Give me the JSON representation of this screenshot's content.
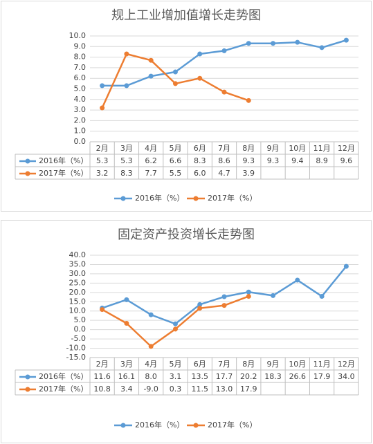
{
  "chart_data": [
    {
      "type": "line",
      "title": "规上工业增加值增长走势图",
      "categories": [
        "2月",
        "3月",
        "4月",
        "5月",
        "6月",
        "7月",
        "8月",
        "9月",
        "10月",
        "11月",
        "12月"
      ],
      "series": [
        {
          "name": "2016年（%）",
          "color": "#5b9bd5",
          "values": [
            5.3,
            5.3,
            6.2,
            6.6,
            8.3,
            8.6,
            9.3,
            9.3,
            9.4,
            8.9,
            9.6
          ],
          "value_labels": [
            "5.3",
            "5.3",
            "6.2",
            "6.6",
            "8.3",
            "8.6",
            "9.3",
            "9.3",
            "9.4",
            "8.9",
            "9.6"
          ]
        },
        {
          "name": "2017年（%）",
          "color": "#ed7d31",
          "values": [
            3.2,
            8.3,
            7.7,
            5.5,
            6.0,
            4.7,
            3.9,
            null,
            null,
            null,
            null
          ],
          "value_labels": [
            "3.2",
            "8.3",
            "7.7",
            "5.5",
            "6.0",
            "4.7",
            "3.9",
            null,
            null,
            null,
            null
          ]
        }
      ],
      "ylim": [
        0,
        10
      ],
      "yticks": [
        {
          "value": 0,
          "label": "0.0"
        },
        {
          "value": 1,
          "label": "1.0"
        },
        {
          "value": 2,
          "label": "2.0"
        },
        {
          "value": 3,
          "label": "3.0"
        },
        {
          "value": 4,
          "label": "4.0"
        },
        {
          "value": 5,
          "label": "5.0"
        },
        {
          "value": 6,
          "label": "6.0"
        },
        {
          "value": 7,
          "label": "7.0"
        },
        {
          "value": 8,
          "label": "8.0"
        },
        {
          "value": 9,
          "label": "9.0"
        },
        {
          "value": 10,
          "label": "10.0"
        }
      ],
      "grid": true
    },
    {
      "type": "line",
      "title": "固定资产投资增长走势图",
      "categories": [
        "2月",
        "3月",
        "4月",
        "5月",
        "6月",
        "7月",
        "8月",
        "9月",
        "10月",
        "11月",
        "12月"
      ],
      "series": [
        {
          "name": "2016年（%）",
          "color": "#5b9bd5",
          "values": [
            11.6,
            16.1,
            8.0,
            3.1,
            13.5,
            17.7,
            20.2,
            18.3,
            26.6,
            17.9,
            34.0
          ],
          "value_labels": [
            "11.6",
            "16.1",
            "8.0",
            "3.1",
            "13.5",
            "17.7",
            "20.2",
            "18.3",
            "26.6",
            "17.9",
            "34.0"
          ]
        },
        {
          "name": "2017年（%）",
          "color": "#ed7d31",
          "values": [
            10.8,
            3.4,
            -9.0,
            0.3,
            11.5,
            13.0,
            17.9,
            null,
            null,
            null,
            null
          ],
          "value_labels": [
            "10.8",
            "3.4",
            "-9.0",
            "0.3",
            "11.5",
            "13.0",
            "17.9",
            null,
            null,
            null,
            null
          ]
        }
      ],
      "ylim": [
        -15,
        40
      ],
      "yticks": [
        {
          "value": -15,
          "label": "-15.0"
        },
        {
          "value": -10,
          "label": "-10.0"
        },
        {
          "value": -5,
          "label": "-5.0"
        },
        {
          "value": 0,
          "label": "0.0"
        },
        {
          "value": 5,
          "label": "5.0"
        },
        {
          "value": 10,
          "label": "10.0"
        },
        {
          "value": 15,
          "label": "15.0"
        },
        {
          "value": 20,
          "label": "20.0"
        },
        {
          "value": 25,
          "label": "25.0"
        },
        {
          "value": 30,
          "label": "30.0"
        },
        {
          "value": 35,
          "label": "35.0"
        },
        {
          "value": 40,
          "label": "40.0"
        }
      ],
      "grid": true
    }
  ]
}
